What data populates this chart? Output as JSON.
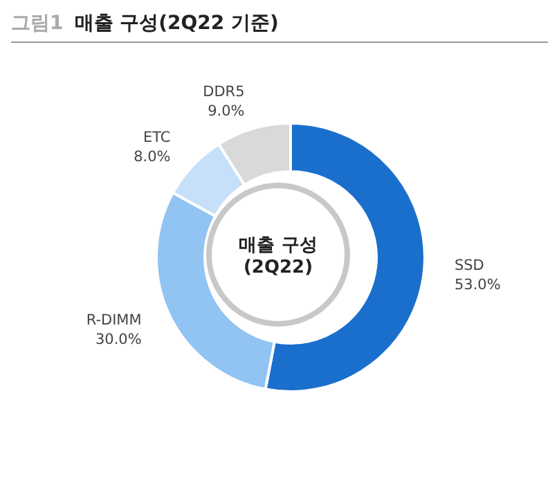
{
  "chart_data": {
    "type": "donut",
    "title": "그림1 매출 구성(2Q22 기준)",
    "categories": [
      "SSD",
      "R-DIMM",
      "ETC",
      "DDR5"
    ],
    "values": [
      53,
      30,
      8,
      9
    ],
    "value_labels": [
      "53.0%",
      "30.0%",
      "8.0%",
      "9.0%"
    ],
    "colors": [
      "#1a6fcc",
      "#91c3f3",
      "#c6e0fa",
      "#d9d9d9"
    ],
    "annotations": [
      "매출 구성",
      "(2Q22)"
    ],
    "legend": false
  }
}
